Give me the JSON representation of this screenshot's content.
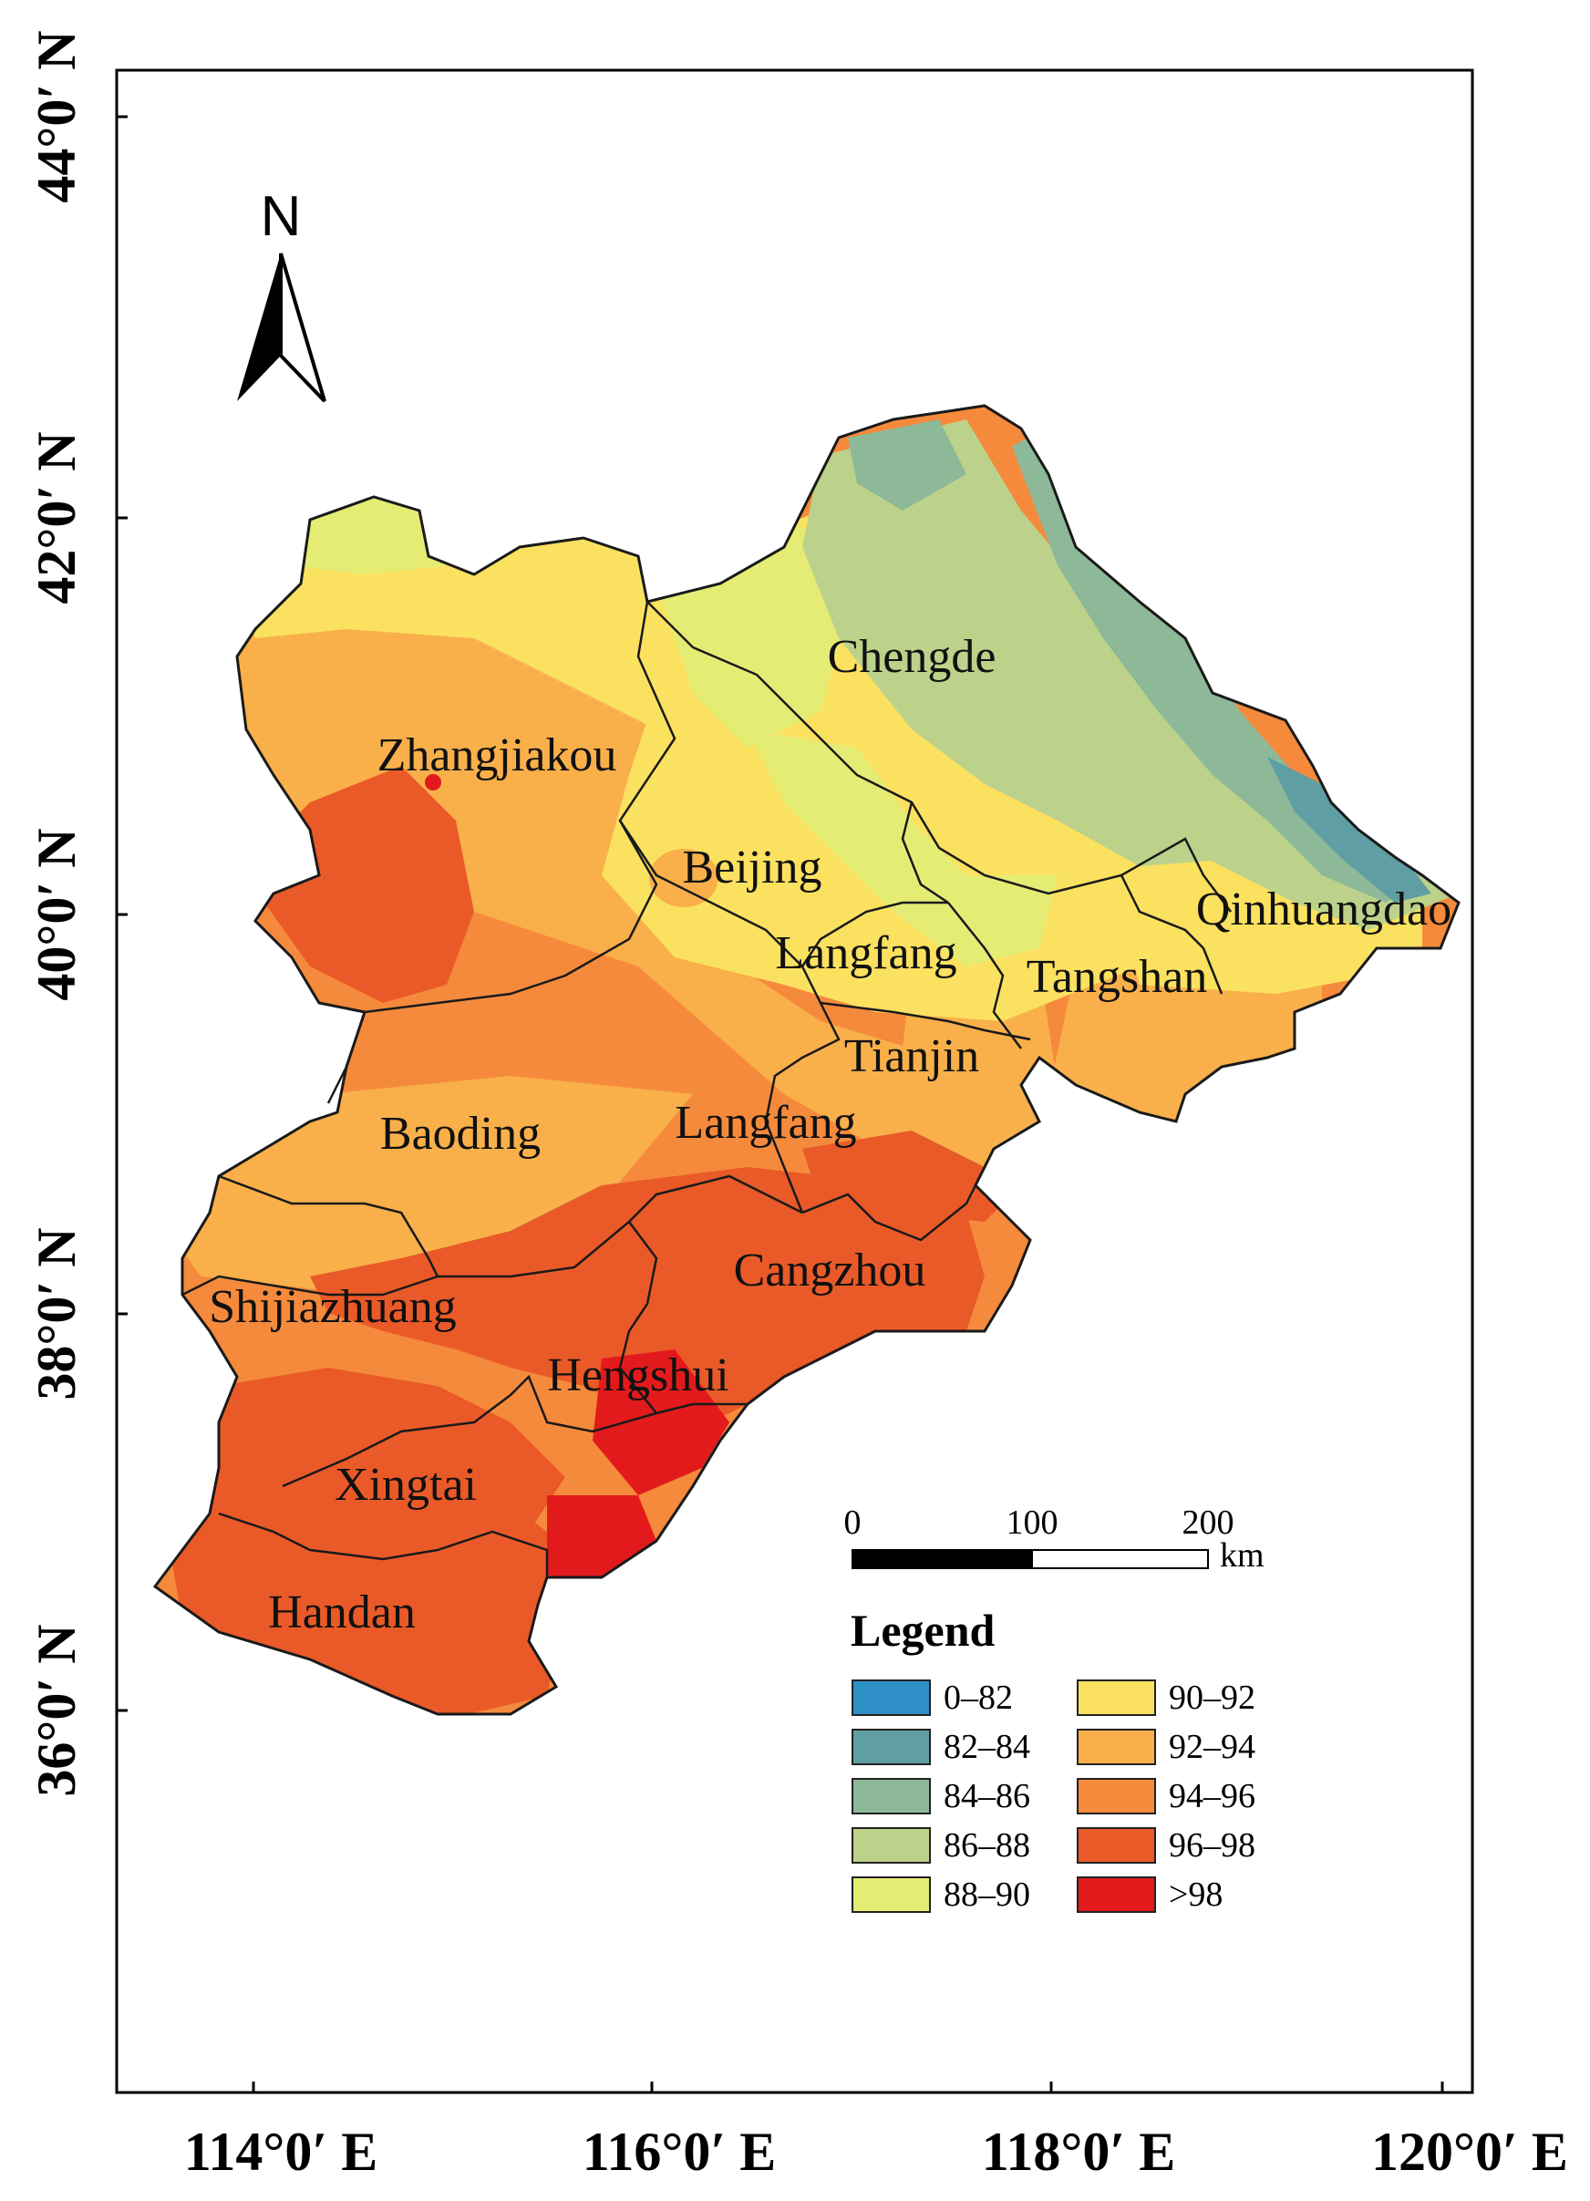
{
  "map": {
    "north_arrow_label": "N",
    "latitude_ticks": [
      "44°0′ N",
      "42°0′ N",
      "40°0′ N",
      "38°0′ N",
      "36°0′ N"
    ],
    "longitude_ticks": [
      "114°0′ E",
      "116°0′ E",
      "118°0′ E",
      "120°0′ E"
    ],
    "cities": [
      {
        "name": "Chengde"
      },
      {
        "name": "Zhangjiakou"
      },
      {
        "name": "Beijing"
      },
      {
        "name": "Qinhuangdao"
      },
      {
        "name": "Langfang"
      },
      {
        "name": "Tangshan"
      },
      {
        "name": "Tianjin"
      },
      {
        "name": "Baoding"
      },
      {
        "name": "Langfang"
      },
      {
        "name": "Cangzhou"
      },
      {
        "name": "Shijiazhuang"
      },
      {
        "name": "Hengshui"
      },
      {
        "name": "Xingtai"
      },
      {
        "name": "Handan"
      }
    ],
    "scale_bar": {
      "ticks": [
        "0",
        "100",
        "200"
      ],
      "unit": "km"
    },
    "legend": {
      "title": "Legend",
      "items": [
        {
          "label": "0–82",
          "color": "#2e8fc6"
        },
        {
          "label": "82–84",
          "color": "#5f9ea3"
        },
        {
          "label": "84–86",
          "color": "#8db998"
        },
        {
          "label": "86–88",
          "color": "#bcd28a"
        },
        {
          "label": "88–90",
          "color": "#e5ec74"
        },
        {
          "label": "90–92",
          "color": "#fbe160"
        },
        {
          "label": "92–94",
          "color": "#f9b04a"
        },
        {
          "label": "94–96",
          "color": "#f58a3c"
        },
        {
          "label": "96–98",
          "color": "#ea5a28"
        },
        {
          "label": ">98",
          "color": "#e31a1c"
        }
      ]
    }
  }
}
